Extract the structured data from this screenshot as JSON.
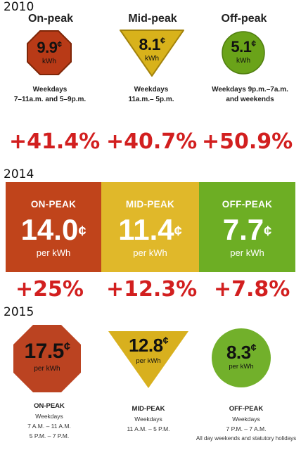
{
  "sections": {
    "y2010": {
      "year": "2010",
      "columns": [
        {
          "header": "On-peak",
          "price": "9.9",
          "cent": "¢",
          "unit": "kWh",
          "sub1": "Weekdays",
          "sub2": "7–11a.m. and 5–9p.m.",
          "color": "#b83a17"
        },
        {
          "header": "Mid-peak",
          "price": "8.1",
          "cent": "¢",
          "unit": "kWh",
          "sub1": "Weekdays",
          "sub2": "11a.m.– 5p.m.",
          "color": "#d8b21b"
        },
        {
          "header": "Off-peak",
          "price": "5.1",
          "cent": "¢",
          "unit": "kWh",
          "sub1": "Weekdays 9p.m.–7a.m.",
          "sub2": "and weekends",
          "color": "#6aa319"
        }
      ]
    },
    "changes_2010_2014": [
      "+41.4%",
      "+40.7%",
      "+50.9%"
    ],
    "y2014": {
      "year": "2014",
      "columns": [
        {
          "label": "ON-PEAK",
          "price": "14.0",
          "cent": "¢",
          "per": "per kWh",
          "color": "#c0441b"
        },
        {
          "label": "MID-PEAK",
          "price": "11.4",
          "cent": "¢",
          "per": "per kWh",
          "color": "#e0b82a"
        },
        {
          "label": "OFF-PEAK",
          "price": "7.7",
          "cent": "¢",
          "per": "per kWh",
          "color": "#6dae24"
        }
      ]
    },
    "changes_2014_2015": [
      "+25%",
      "+12.3%",
      "+7.8%"
    ],
    "y2015": {
      "year": "2015",
      "columns": [
        {
          "price": "17.5",
          "cent": "¢",
          "unit": "per kWh",
          "title": "ON-PEAK",
          "line1": "Weekdays",
          "line2": "7 A.M. – 11 A.M.",
          "line3": "5 P.M. – 7 P.M.",
          "color": "#bb4321"
        },
        {
          "price": "12.8",
          "cent": "¢",
          "unit": "per kWh",
          "title": "MID-PEAK",
          "line1": "Weekdays",
          "line2": "11 A.M. – 5 P.M.",
          "line3": "",
          "color": "#d8b01e"
        },
        {
          "price": "8.3",
          "cent": "¢",
          "unit": "per kWh",
          "title": "OFF-PEAK",
          "line1": "Weekdays",
          "line2": "7 P.M. – 7 A.M.",
          "line3": "All day weekends and statutory holidays",
          "color": "#72b02b"
        }
      ]
    }
  }
}
